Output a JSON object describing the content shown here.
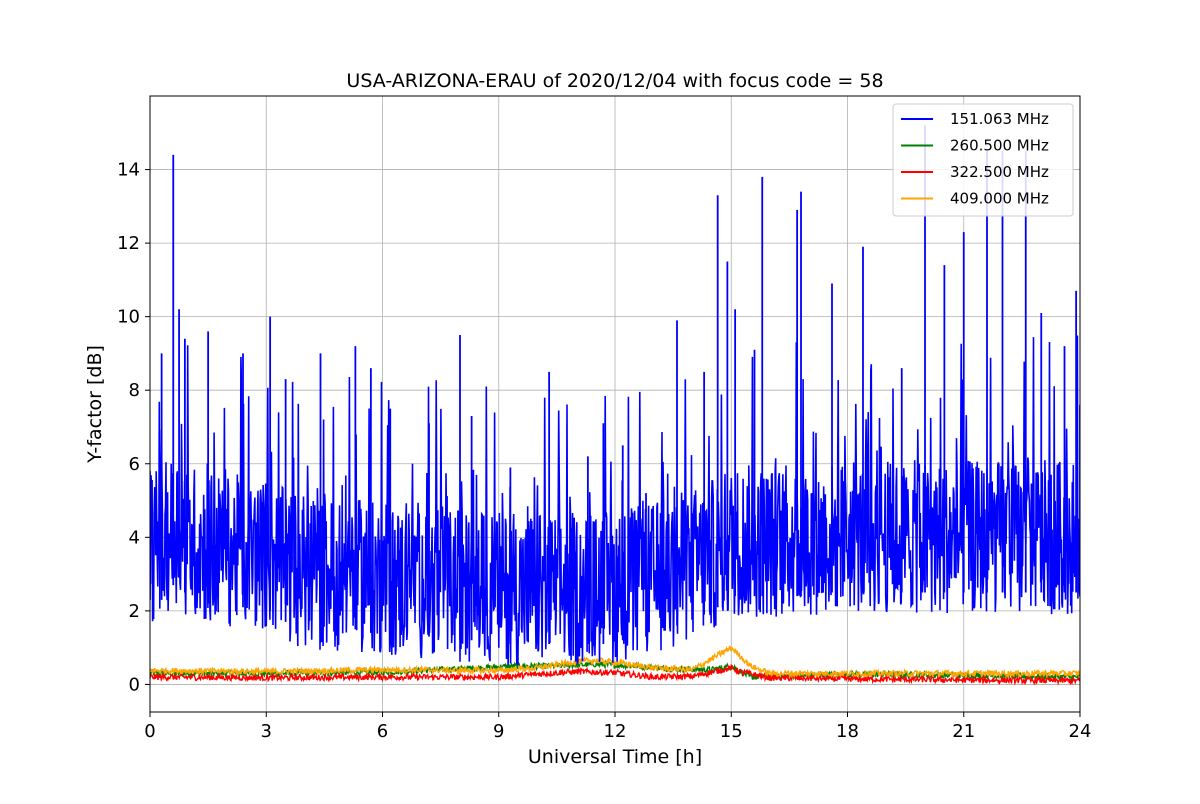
{
  "chart_data": {
    "type": "line",
    "title": "USA-ARIZONA-ERAU of 2020/12/04 with focus code = 58",
    "xlabel": "Universal Time [h]",
    "ylabel": "Y-factor [dB]",
    "xlim": [
      0,
      24
    ],
    "ylim": [
      -0.75,
      16
    ],
    "xticks": [
      0,
      3,
      6,
      9,
      12,
      15,
      18,
      21,
      24
    ],
    "yticks": [
      0,
      2,
      4,
      6,
      8,
      10,
      12,
      14
    ],
    "grid": true,
    "legend_position": "top-right",
    "series": [
      {
        "name": "151.063 MHz",
        "color": "#0000ff",
        "x": [
          0,
          0.3,
          0.6,
          0.75,
          0.9,
          1.5,
          2.4,
          3.1,
          3.5,
          4.4,
          5.3,
          5.7,
          6.2,
          7.2,
          8.0,
          8.3,
          9.3,
          10.3,
          11.3,
          11.7,
          12.2,
          12.8,
          13.6,
          14.3,
          14.65,
          14.9,
          15.1,
          15.6,
          15.8,
          16.7,
          16.8,
          17.6,
          18.4,
          19.4,
          20.0,
          20.5,
          21.0,
          21.6,
          22.0,
          22.6,
          23.0,
          23.6,
          23.9,
          24.0
        ],
        "peaks": [
          5.8,
          9.0,
          14.4,
          10.2,
          9.4,
          9.6,
          9.0,
          10.0,
          8.3,
          9.0,
          9.2,
          8.6,
          7.5,
          7.1,
          9.5,
          7.3,
          5.9,
          8.5,
          6.2,
          7.1,
          6.5,
          5.2,
          9.9,
          8.5,
          13.3,
          11.5,
          10.2,
          9.1,
          13.8,
          12.9,
          13.4,
          10.9,
          11.9,
          8.6,
          15.2,
          11.4,
          12.3,
          14.5,
          14.5,
          14.5,
          10.1,
          9.2,
          10.7,
          7.6
        ],
        "mean": [
          3.8,
          3.8,
          4.2,
          4.4,
          4.0,
          3.7,
          3.6,
          3.5,
          3.2,
          3.0,
          3.0,
          2.9,
          2.8,
          2.8,
          2.7,
          2.7,
          2.6,
          2.6,
          2.6,
          2.6,
          2.7,
          2.8,
          3.1,
          3.4,
          3.6,
          3.8,
          3.9,
          3.9,
          3.9,
          3.9,
          3.9,
          4.0,
          4.0,
          4.0,
          4.0,
          4.0,
          4.0,
          4.0,
          4.0,
          4.0,
          4.0,
          4.0,
          4.0,
          4.0
        ]
      },
      {
        "name": "260.500 MHz",
        "color": "#008000",
        "x": [
          0,
          3,
          6,
          8.5,
          9.5,
          10.5,
          11.5,
          12.5,
          13.5,
          14.5,
          15.0,
          15.5,
          16.0,
          18,
          21,
          24
        ],
        "values": [
          0.3,
          0.3,
          0.33,
          0.45,
          0.5,
          0.5,
          0.55,
          0.5,
          0.42,
          0.4,
          0.5,
          0.2,
          0.22,
          0.28,
          0.25,
          0.2
        ]
      },
      {
        "name": "322.500 MHz",
        "color": "#ff0000",
        "x": [
          0,
          3,
          6,
          9,
          10,
          11,
          12,
          13,
          14,
          15.0,
          15.2,
          16,
          18,
          21,
          24
        ],
        "values": [
          0.2,
          0.18,
          0.2,
          0.2,
          0.28,
          0.35,
          0.32,
          0.2,
          0.22,
          0.45,
          0.35,
          0.18,
          0.15,
          0.12,
          0.1
        ]
      },
      {
        "name": "409.000 MHz",
        "color": "#ffa500",
        "x": [
          0,
          3,
          6,
          9,
          10,
          11,
          11.5,
          12,
          13,
          14,
          15.0,
          15.5,
          16,
          18,
          21,
          24
        ],
        "values": [
          0.38,
          0.35,
          0.4,
          0.38,
          0.45,
          0.62,
          0.65,
          0.6,
          0.45,
          0.4,
          1.0,
          0.5,
          0.3,
          0.3,
          0.3,
          0.3
        ]
      }
    ]
  }
}
